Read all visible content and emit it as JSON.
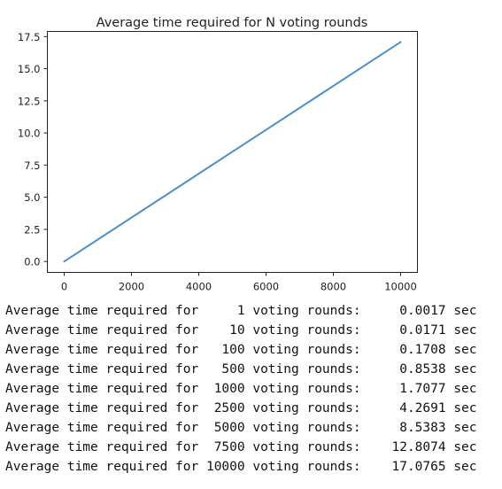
{
  "chart_data": {
    "type": "line",
    "title": "Average time required for N voting rounds",
    "xlabel": "",
    "ylabel": "",
    "xlim": [
      -500,
      10500
    ],
    "ylim": [
      -0.85,
      17.9
    ],
    "grid": false,
    "x_ticks": [
      0,
      2000,
      4000,
      6000,
      8000,
      10000
    ],
    "x_tick_labels": [
      "0",
      "2000",
      "4000",
      "6000",
      "8000",
      "10000"
    ],
    "y_ticks": [
      0.0,
      2.5,
      5.0,
      7.5,
      10.0,
      12.5,
      15.0,
      17.5
    ],
    "y_tick_labels": [
      "0.0",
      "2.5",
      "5.0",
      "7.5",
      "10.0",
      "12.5",
      "15.0",
      "17.5"
    ],
    "series": [
      {
        "color": "#4c8fc8",
        "x": [
          1,
          10,
          100,
          500,
          1000,
          2500,
          5000,
          7500,
          10000
        ],
        "y": [
          0.0017,
          0.0171,
          0.1708,
          0.8538,
          1.7077,
          4.2691,
          8.5383,
          12.8074,
          17.0765
        ]
      }
    ]
  },
  "output_lines": [
    "Average time required for     1 voting rounds:     0.0017 sec",
    "Average time required for    10 voting rounds:     0.0171 sec",
    "Average time required for   100 voting rounds:     0.1708 sec",
    "Average time required for   500 voting rounds:     0.8538 sec",
    "Average time required for  1000 voting rounds:     1.7077 sec",
    "Average time required for  2500 voting rounds:     4.2691 sec",
    "Average time required for  5000 voting rounds:     8.5383 sec",
    "Average time required for  7500 voting rounds:    12.8074 sec",
    "Average time required for 10000 voting rounds:    17.0765 sec"
  ]
}
